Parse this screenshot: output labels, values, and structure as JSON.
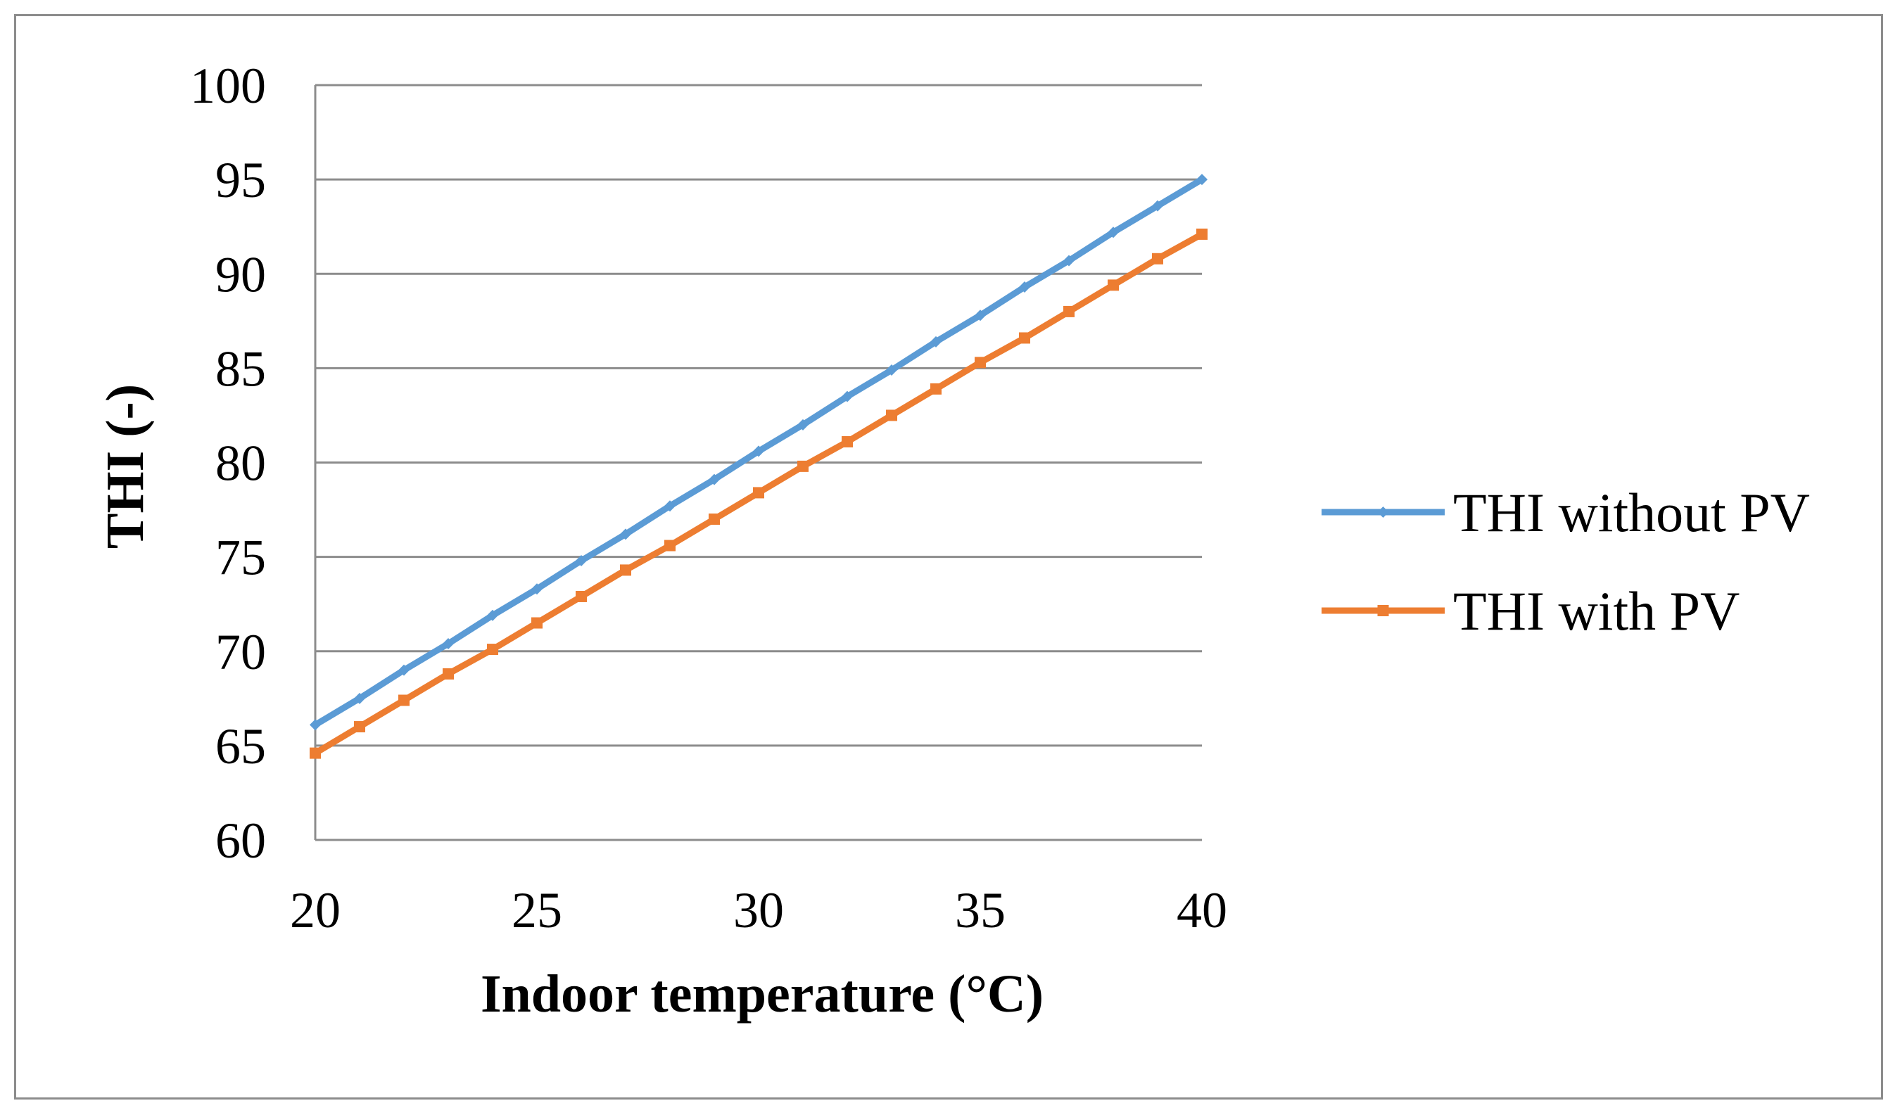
{
  "chart_data": {
    "type": "line",
    "title": "",
    "xlabel": "Indoor temperature (°C)",
    "ylabel": "THI (-)",
    "xlim": [
      20,
      40
    ],
    "ylim": [
      60,
      100
    ],
    "x_ticks": [
      20,
      25,
      30,
      35,
      40
    ],
    "y_ticks": [
      60,
      65,
      70,
      75,
      80,
      85,
      90,
      95,
      100
    ],
    "grid": "horizontal",
    "legend_position": "right",
    "x": [
      20,
      21,
      22,
      23,
      24,
      25,
      26,
      27,
      28,
      29,
      30,
      31,
      32,
      33,
      34,
      35,
      36,
      37,
      38,
      39,
      40
    ],
    "series": [
      {
        "name": "THI without PV",
        "color": "#5B9BD5",
        "marker": "diamond",
        "values": [
          66.1,
          67.5,
          69.0,
          70.4,
          71.9,
          73.3,
          74.8,
          76.2,
          77.7,
          79.1,
          80.6,
          82.0,
          83.5,
          84.9,
          86.4,
          87.8,
          89.3,
          90.7,
          92.2,
          93.6,
          95.0
        ]
      },
      {
        "name": "THI with PV",
        "color": "#ED7D31",
        "marker": "square",
        "values": [
          64.6,
          66.0,
          67.4,
          68.8,
          70.1,
          71.5,
          72.9,
          74.3,
          75.6,
          77.0,
          78.4,
          79.8,
          81.1,
          82.5,
          83.9,
          85.3,
          86.6,
          88.0,
          89.4,
          90.8,
          92.1
        ]
      }
    ]
  }
}
